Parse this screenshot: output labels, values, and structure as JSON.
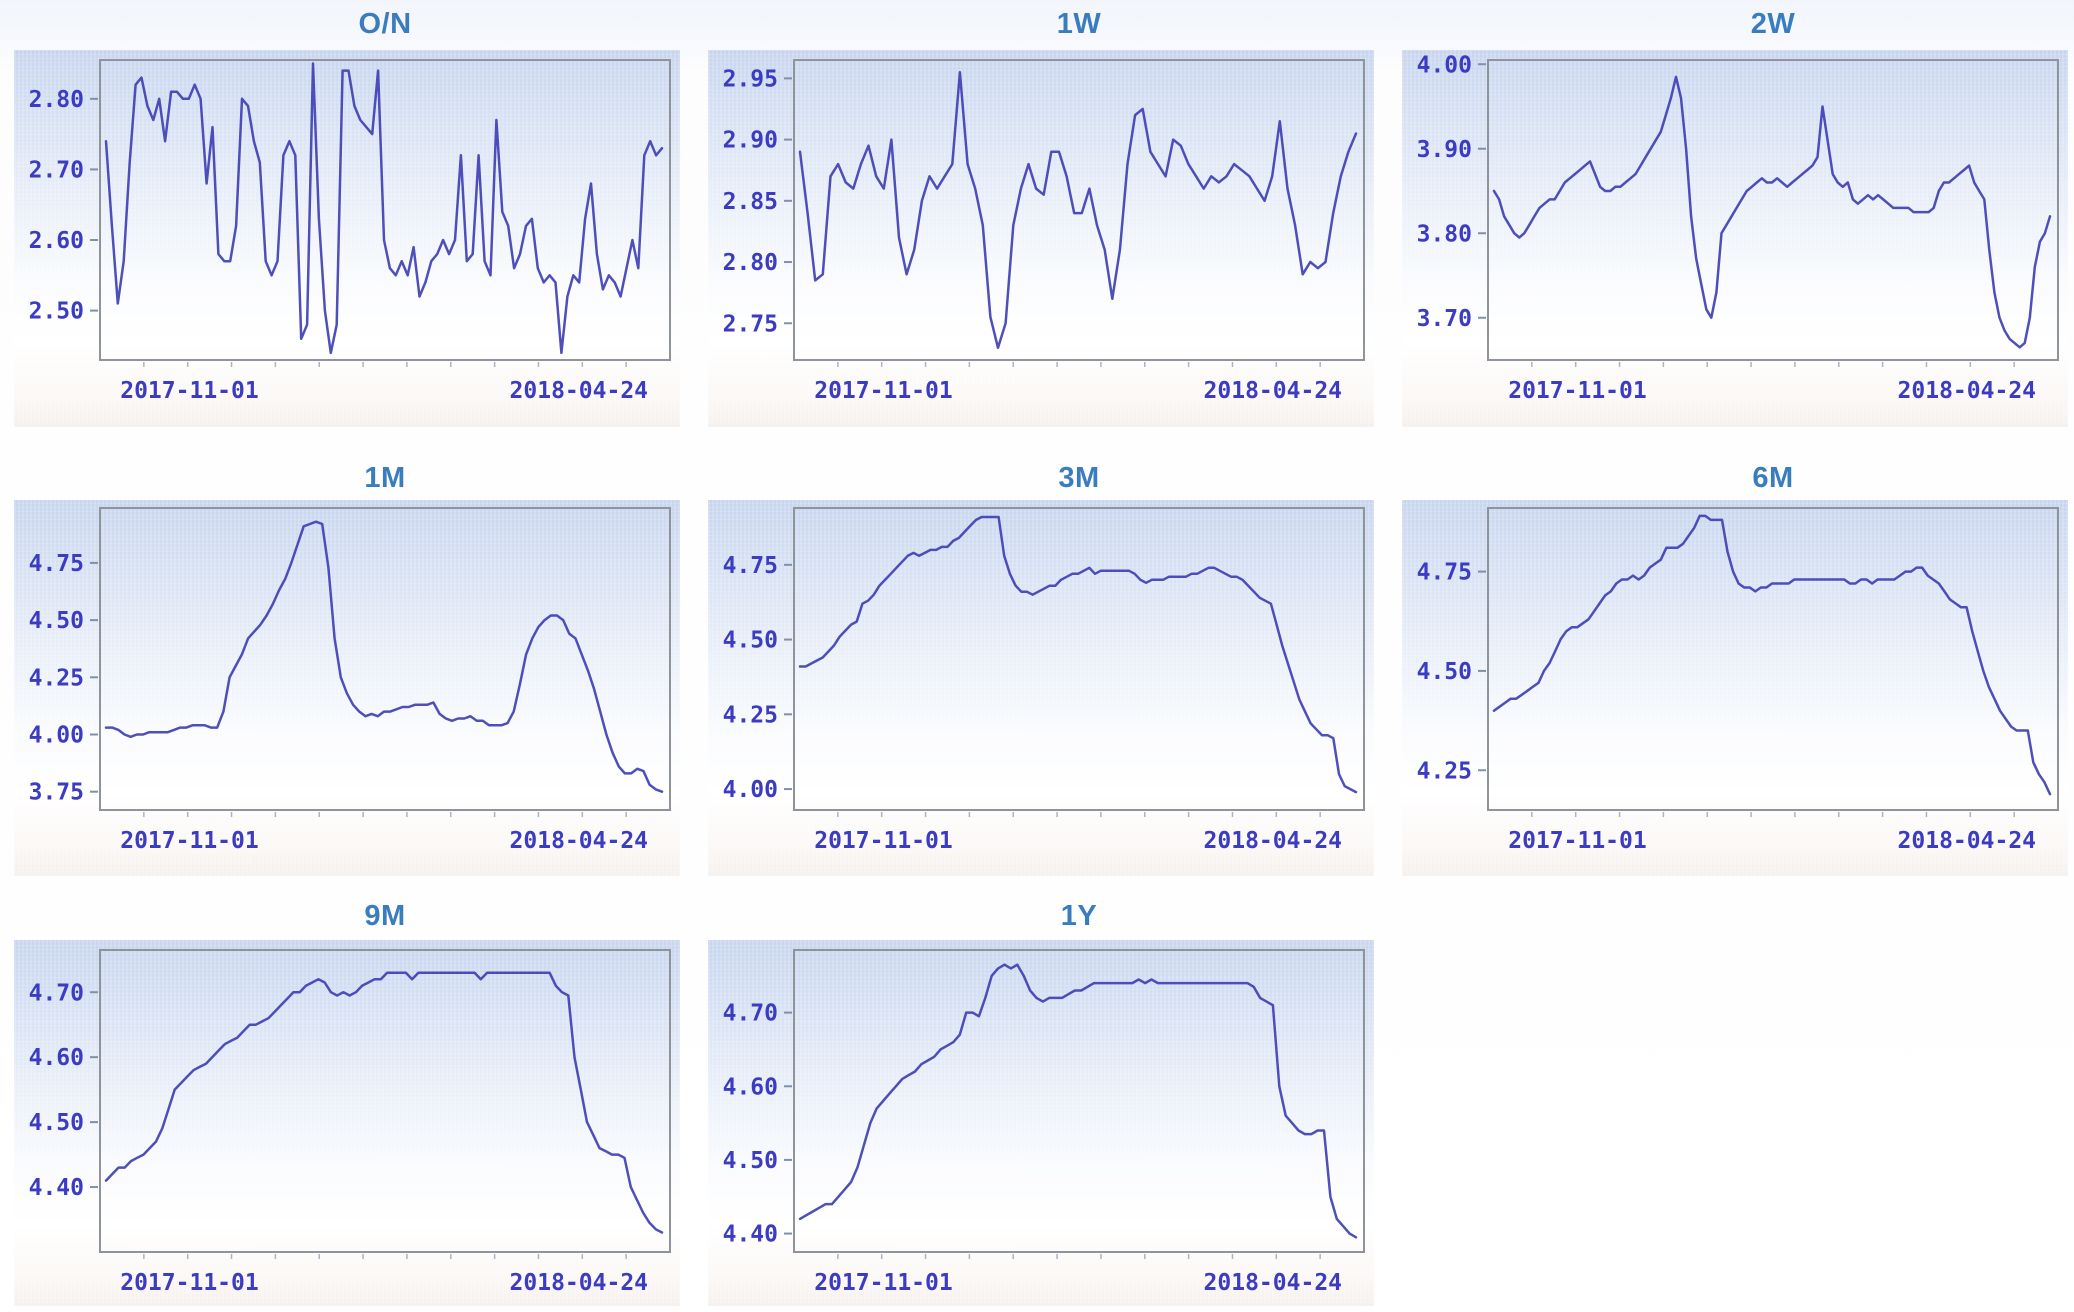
{
  "colors": {
    "title": "#3a7dbe",
    "axis_label": "#3c3cc2",
    "line": "#4040b4",
    "plot_border": "#8e9499",
    "tick_mark": "#8090a8",
    "minor_tick": "#aab4c4",
    "panel_top": "#c7d5ee",
    "panel_bottom": "#f5f0ed"
  },
  "chart_data": [
    {
      "type": "line",
      "title": "O/N",
      "xlabel": "",
      "ylabel": "",
      "grid": false,
      "legend": "none",
      "x_range": [
        "2017-08",
        "2018-05"
      ],
      "xticks": [
        {
          "label": "2017-11-01",
          "pos": 0.157
        },
        {
          "label": "2018-04-24",
          "pos": 0.84
        }
      ],
      "ylim": [
        2.43,
        2.855
      ],
      "yticks": [
        2.5,
        2.6,
        2.7,
        2.8
      ],
      "ytick_labels": [
        "2.50",
        "2.60",
        "2.70",
        "2.80"
      ],
      "values": [
        2.74,
        2.62,
        2.51,
        2.57,
        2.71,
        2.82,
        2.83,
        2.79,
        2.77,
        2.8,
        2.74,
        2.81,
        2.81,
        2.8,
        2.8,
        2.82,
        2.8,
        2.68,
        2.76,
        2.58,
        2.57,
        2.57,
        2.62,
        2.8,
        2.79,
        2.74,
        2.71,
        2.57,
        2.55,
        2.57,
        2.72,
        2.74,
        2.72,
        2.46,
        2.48,
        2.85,
        2.63,
        2.5,
        2.44,
        2.48,
        2.84,
        2.84,
        2.79,
        2.77,
        2.76,
        2.75,
        2.84,
        2.6,
        2.56,
        2.55,
        2.57,
        2.55,
        2.59,
        2.52,
        2.54,
        2.57,
        2.58,
        2.6,
        2.58,
        2.6,
        2.72,
        2.57,
        2.58,
        2.72,
        2.57,
        2.55,
        2.77,
        2.64,
        2.62,
        2.56,
        2.58,
        2.62,
        2.63,
        2.56,
        2.54,
        2.55,
        2.54,
        2.44,
        2.52,
        2.55,
        2.54,
        2.63,
        2.68,
        2.58,
        2.53,
        2.55,
        2.54,
        2.52,
        2.56,
        2.6,
        2.56,
        2.72,
        2.74,
        2.72,
        2.73
      ]
    },
    {
      "type": "line",
      "title": "1W",
      "xlabel": "",
      "ylabel": "",
      "grid": false,
      "legend": "none",
      "x_range": [
        "2017-08",
        "2018-05"
      ],
      "xticks": [
        {
          "label": "2017-11-01",
          "pos": 0.157
        },
        {
          "label": "2018-04-24",
          "pos": 0.84
        }
      ],
      "ylim": [
        2.72,
        2.965
      ],
      "yticks": [
        2.75,
        2.8,
        2.85,
        2.9,
        2.95
      ],
      "ytick_labels": [
        "2.75",
        "2.80",
        "2.85",
        "2.90",
        "2.95"
      ],
      "values": [
        2.89,
        2.84,
        2.785,
        2.79,
        2.87,
        2.88,
        2.865,
        2.86,
        2.88,
        2.895,
        2.87,
        2.86,
        2.9,
        2.82,
        2.79,
        2.81,
        2.85,
        2.87,
        2.86,
        2.87,
        2.88,
        2.955,
        2.88,
        2.86,
        2.83,
        2.755,
        2.73,
        2.75,
        2.83,
        2.86,
        2.88,
        2.86,
        2.855,
        2.89,
        2.89,
        2.87,
        2.84,
        2.84,
        2.86,
        2.83,
        2.81,
        2.77,
        2.81,
        2.88,
        2.92,
        2.925,
        2.89,
        2.88,
        2.87,
        2.9,
        2.895,
        2.88,
        2.87,
        2.86,
        2.87,
        2.865,
        2.87,
        2.88,
        2.875,
        2.87,
        2.86,
        2.85,
        2.87,
        2.915,
        2.86,
        2.83,
        2.79,
        2.8,
        2.795,
        2.8,
        2.84,
        2.87,
        2.89,
        2.905
      ]
    },
    {
      "type": "line",
      "title": "2W",
      "xlabel": "",
      "ylabel": "",
      "grid": false,
      "legend": "none",
      "x_range": [
        "2017-08",
        "2018-05"
      ],
      "xticks": [
        {
          "label": "2017-11-01",
          "pos": 0.157
        },
        {
          "label": "2018-04-24",
          "pos": 0.84
        }
      ],
      "ylim": [
        3.65,
        4.005
      ],
      "yticks": [
        3.7,
        3.8,
        3.9,
        4.0
      ],
      "ytick_labels": [
        "3.70",
        "3.80",
        "3.90",
        "4.00"
      ],
      "values": [
        3.85,
        3.84,
        3.82,
        3.81,
        3.8,
        3.795,
        3.8,
        3.81,
        3.82,
        3.83,
        3.835,
        3.84,
        3.84,
        3.85,
        3.86,
        3.865,
        3.87,
        3.875,
        3.88,
        3.885,
        3.87,
        3.855,
        3.85,
        3.85,
        3.855,
        3.855,
        3.86,
        3.865,
        3.87,
        3.88,
        3.89,
        3.9,
        3.91,
        3.92,
        3.94,
        3.96,
        3.985,
        3.96,
        3.9,
        3.82,
        3.77,
        3.74,
        3.71,
        3.7,
        3.73,
        3.8,
        3.81,
        3.82,
        3.83,
        3.84,
        3.85,
        3.855,
        3.86,
        3.865,
        3.86,
        3.86,
        3.865,
        3.86,
        3.855,
        3.86,
        3.865,
        3.87,
        3.875,
        3.88,
        3.89,
        3.95,
        3.91,
        3.87,
        3.86,
        3.855,
        3.86,
        3.84,
        3.835,
        3.84,
        3.845,
        3.84,
        3.845,
        3.84,
        3.835,
        3.83,
        3.83,
        3.83,
        3.83,
        3.825,
        3.825,
        3.825,
        3.825,
        3.83,
        3.85,
        3.86,
        3.86,
        3.865,
        3.87,
        3.875,
        3.88,
        3.86,
        3.85,
        3.84,
        3.78,
        3.73,
        3.7,
        3.685,
        3.675,
        3.67,
        3.665,
        3.67,
        3.7,
        3.76,
        3.79,
        3.8,
        3.82
      ]
    },
    {
      "type": "line",
      "title": "1M",
      "xlabel": "",
      "ylabel": "",
      "grid": false,
      "legend": "none",
      "x_range": [
        "2017-08",
        "2018-05"
      ],
      "xticks": [
        {
          "label": "2017-11-01",
          "pos": 0.157
        },
        {
          "label": "2018-04-24",
          "pos": 0.84
        }
      ],
      "ylim": [
        3.67,
        4.99
      ],
      "yticks": [
        3.75,
        4.0,
        4.25,
        4.5,
        4.75
      ],
      "ytick_labels": [
        "3.75",
        "4.00",
        "4.25",
        "4.50",
        "4.75"
      ],
      "values": [
        4.03,
        4.03,
        4.02,
        4.0,
        3.99,
        4.0,
        4.0,
        4.01,
        4.01,
        4.01,
        4.01,
        4.02,
        4.03,
        4.03,
        4.04,
        4.04,
        4.04,
        4.03,
        4.03,
        4.1,
        4.25,
        4.3,
        4.35,
        4.42,
        4.45,
        4.48,
        4.52,
        4.57,
        4.63,
        4.68,
        4.75,
        4.83,
        4.91,
        4.92,
        4.93,
        4.92,
        4.73,
        4.42,
        4.25,
        4.18,
        4.13,
        4.1,
        4.08,
        4.09,
        4.08,
        4.1,
        4.1,
        4.11,
        4.12,
        4.12,
        4.13,
        4.13,
        4.13,
        4.14,
        4.09,
        4.07,
        4.06,
        4.07,
        4.07,
        4.08,
        4.06,
        4.06,
        4.04,
        4.04,
        4.04,
        4.05,
        4.1,
        4.22,
        4.35,
        4.42,
        4.47,
        4.5,
        4.52,
        4.52,
        4.5,
        4.44,
        4.42,
        4.35,
        4.28,
        4.2,
        4.1,
        4.0,
        3.92,
        3.86,
        3.83,
        3.83,
        3.85,
        3.84,
        3.78,
        3.76,
        3.75
      ]
    },
    {
      "type": "line",
      "title": "3M",
      "xlabel": "",
      "ylabel": "",
      "grid": false,
      "legend": "none",
      "x_range": [
        "2017-08",
        "2018-05"
      ],
      "xticks": [
        {
          "label": "2017-11-01",
          "pos": 0.157
        },
        {
          "label": "2018-04-24",
          "pos": 0.84
        }
      ],
      "ylim": [
        3.93,
        4.94
      ],
      "yticks": [
        4.0,
        4.25,
        4.5,
        4.75
      ],
      "ytick_labels": [
        "4.00",
        "4.25",
        "4.50",
        "4.75"
      ],
      "values": [
        4.41,
        4.41,
        4.42,
        4.43,
        4.44,
        4.46,
        4.48,
        4.51,
        4.53,
        4.55,
        4.56,
        4.62,
        4.63,
        4.65,
        4.68,
        4.7,
        4.72,
        4.74,
        4.76,
        4.78,
        4.79,
        4.78,
        4.79,
        4.8,
        4.8,
        4.81,
        4.81,
        4.83,
        4.84,
        4.86,
        4.88,
        4.9,
        4.91,
        4.91,
        4.91,
        4.91,
        4.78,
        4.72,
        4.68,
        4.66,
        4.66,
        4.65,
        4.66,
        4.67,
        4.68,
        4.68,
        4.7,
        4.71,
        4.72,
        4.72,
        4.73,
        4.74,
        4.72,
        4.73,
        4.73,
        4.73,
        4.73,
        4.73,
        4.73,
        4.72,
        4.7,
        4.69,
        4.7,
        4.7,
        4.7,
        4.71,
        4.71,
        4.71,
        4.71,
        4.72,
        4.72,
        4.73,
        4.74,
        4.74,
        4.73,
        4.72,
        4.71,
        4.71,
        4.7,
        4.68,
        4.66,
        4.64,
        4.63,
        4.62,
        4.55,
        4.48,
        4.42,
        4.36,
        4.3,
        4.26,
        4.22,
        4.2,
        4.18,
        4.18,
        4.17,
        4.05,
        4.01,
        4.0,
        3.99
      ]
    },
    {
      "type": "line",
      "title": "6M",
      "xlabel": "",
      "ylabel": "",
      "grid": false,
      "legend": "none",
      "x_range": [
        "2017-08",
        "2018-05"
      ],
      "xticks": [
        {
          "label": "2017-11-01",
          "pos": 0.157
        },
        {
          "label": "2018-04-24",
          "pos": 0.84
        }
      ],
      "ylim": [
        4.15,
        4.91
      ],
      "yticks": [
        4.25,
        4.5,
        4.75
      ],
      "ytick_labels": [
        "4.25",
        "4.50",
        "4.75"
      ],
      "values": [
        4.4,
        4.41,
        4.42,
        4.43,
        4.43,
        4.44,
        4.45,
        4.46,
        4.47,
        4.5,
        4.52,
        4.55,
        4.58,
        4.6,
        4.61,
        4.61,
        4.62,
        4.63,
        4.65,
        4.67,
        4.69,
        4.7,
        4.72,
        4.73,
        4.73,
        4.74,
        4.73,
        4.74,
        4.76,
        4.77,
        4.78,
        4.81,
        4.81,
        4.81,
        4.82,
        4.84,
        4.86,
        4.89,
        4.89,
        4.88,
        4.88,
        4.88,
        4.8,
        4.75,
        4.72,
        4.71,
        4.71,
        4.7,
        4.71,
        4.71,
        4.72,
        4.72,
        4.72,
        4.72,
        4.73,
        4.73,
        4.73,
        4.73,
        4.73,
        4.73,
        4.73,
        4.73,
        4.73,
        4.73,
        4.72,
        4.72,
        4.73,
        4.73,
        4.72,
        4.73,
        4.73,
        4.73,
        4.73,
        4.74,
        4.75,
        4.75,
        4.76,
        4.76,
        4.74,
        4.73,
        4.72,
        4.7,
        4.68,
        4.67,
        4.66,
        4.66,
        4.6,
        4.55,
        4.5,
        4.46,
        4.43,
        4.4,
        4.38,
        4.36,
        4.35,
        4.35,
        4.35,
        4.27,
        4.24,
        4.22,
        4.19
      ]
    },
    {
      "type": "line",
      "title": "9M",
      "xlabel": "",
      "ylabel": "",
      "grid": false,
      "legend": "none",
      "x_range": [
        "2017-08",
        "2018-05"
      ],
      "xticks": [
        {
          "label": "2017-11-01",
          "pos": 0.157
        },
        {
          "label": "2018-04-24",
          "pos": 0.84
        }
      ],
      "ylim": [
        4.3,
        4.765
      ],
      "yticks": [
        4.4,
        4.5,
        4.6,
        4.7
      ],
      "ytick_labels": [
        "4.40",
        "4.50",
        "4.60",
        "4.70"
      ],
      "values": [
        4.41,
        4.42,
        4.43,
        4.43,
        4.44,
        4.445,
        4.45,
        4.46,
        4.47,
        4.49,
        4.52,
        4.55,
        4.56,
        4.57,
        4.58,
        4.585,
        4.59,
        4.6,
        4.61,
        4.62,
        4.625,
        4.63,
        4.64,
        4.65,
        4.65,
        4.655,
        4.66,
        4.67,
        4.68,
        4.69,
        4.7,
        4.7,
        4.71,
        4.715,
        4.72,
        4.715,
        4.7,
        4.695,
        4.7,
        4.695,
        4.7,
        4.71,
        4.715,
        4.72,
        4.72,
        4.73,
        4.73,
        4.73,
        4.73,
        4.72,
        4.73,
        4.73,
        4.73,
        4.73,
        4.73,
        4.73,
        4.73,
        4.73,
        4.73,
        4.73,
        4.72,
        4.73,
        4.73,
        4.73,
        4.73,
        4.73,
        4.73,
        4.73,
        4.73,
        4.73,
        4.73,
        4.73,
        4.71,
        4.7,
        4.695,
        4.6,
        4.55,
        4.5,
        4.48,
        4.46,
        4.455,
        4.45,
        4.45,
        4.445,
        4.4,
        4.38,
        4.36,
        4.345,
        4.335,
        4.33
      ]
    },
    {
      "type": "line",
      "title": "1Y",
      "xlabel": "",
      "ylabel": "",
      "grid": false,
      "legend": "none",
      "x_range": [
        "2017-08",
        "2018-05"
      ],
      "xticks": [
        {
          "label": "2017-11-01",
          "pos": 0.157
        },
        {
          "label": "2018-04-24",
          "pos": 0.84
        }
      ],
      "ylim": [
        4.375,
        4.785
      ],
      "yticks": [
        4.4,
        4.5,
        4.6,
        4.7
      ],
      "ytick_labels": [
        "4.40",
        "4.50",
        "4.60",
        "4.70"
      ],
      "values": [
        4.42,
        4.425,
        4.43,
        4.435,
        4.44,
        4.44,
        4.45,
        4.46,
        4.47,
        4.49,
        4.52,
        4.55,
        4.57,
        4.58,
        4.59,
        4.6,
        4.61,
        4.615,
        4.62,
        4.63,
        4.635,
        4.64,
        4.65,
        4.655,
        4.66,
        4.67,
        4.7,
        4.7,
        4.695,
        4.72,
        4.75,
        4.76,
        4.765,
        4.76,
        4.765,
        4.75,
        4.73,
        4.72,
        4.715,
        4.72,
        4.72,
        4.72,
        4.725,
        4.73,
        4.73,
        4.735,
        4.74,
        4.74,
        4.74,
        4.74,
        4.74,
        4.74,
        4.74,
        4.745,
        4.74,
        4.745,
        4.74,
        4.74,
        4.74,
        4.74,
        4.74,
        4.74,
        4.74,
        4.74,
        4.74,
        4.74,
        4.74,
        4.74,
        4.74,
        4.74,
        4.74,
        4.735,
        4.72,
        4.715,
        4.71,
        4.6,
        4.56,
        4.55,
        4.54,
        4.535,
        4.535,
        4.54,
        4.54,
        4.45,
        4.42,
        4.41,
        4.4,
        4.395
      ]
    }
  ]
}
